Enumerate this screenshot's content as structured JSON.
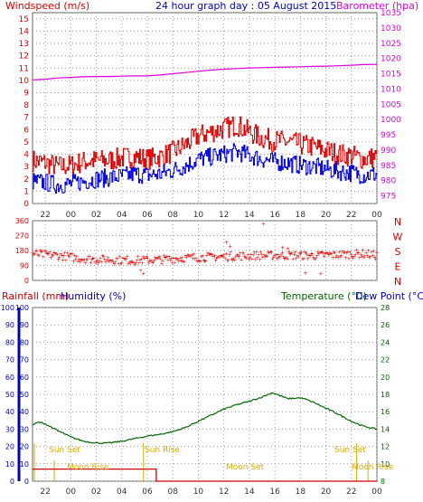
{
  "header": {
    "left_label": "Windspeed (m/s)",
    "title": "24 hour graph day : 05 August 2015",
    "right_label": "Barometer (hpa)"
  },
  "colors": {
    "wind_avg": "#dd0000",
    "wind_gust": "#0000dd",
    "barometer": "#dd00dd",
    "direction": "#dd0000",
    "humidity": "#0000bb",
    "rainfall": "#cc0000",
    "temperature": "#006600",
    "sun": "#ddaa00",
    "moon": "#ddaa00",
    "grid": "#999999"
  },
  "x_ticks": [
    "22",
    "00",
    "02",
    "04",
    "06",
    "08",
    "10",
    "12",
    "14",
    "16",
    "18",
    "20",
    "22",
    "00"
  ],
  "wind_axis": {
    "ticks": [
      "0",
      "1",
      "2",
      "3",
      "4",
      "5",
      "6",
      "7",
      "8",
      "9",
      "10",
      "11",
      "12",
      "13",
      "14",
      "15"
    ]
  },
  "baro_axis": {
    "ticks": [
      "975",
      "980",
      "985",
      "990",
      "995",
      "1000",
      "1005",
      "1010",
      "1015",
      "1020",
      "1025",
      "1030",
      "1035"
    ]
  },
  "dir_axis": {
    "ticks": [
      "360",
      "270",
      "180",
      "90",
      "0"
    ],
    "letters": [
      "N",
      "W",
      "S",
      "E",
      "N"
    ]
  },
  "mid_header": {
    "rainfall": "Rainfall (mm)",
    "humidity": "Humidity (%)",
    "temperature": "Temperature (°C)",
    "dewpoint": "Dew Point (°C)"
  },
  "hum_axis": {
    "ticks": [
      "0",
      "10",
      "20",
      "30",
      "40",
      "50",
      "60",
      "70",
      "80",
      "90",
      "100"
    ]
  },
  "rain_axis": {
    "ticks": [
      "0",
      "10",
      "20",
      "30",
      "40",
      "50",
      "60",
      "70",
      "80",
      "90",
      "100"
    ]
  },
  "temp_axis": {
    "ticks": [
      "8",
      "10",
      "12",
      "14",
      "16",
      "18",
      "20",
      "22",
      "24",
      "26",
      "28"
    ]
  },
  "sun_labels": [
    "Sun Set",
    "Sun Rise",
    "Sun Set"
  ],
  "moon_labels": [
    "Moon Rise",
    "Moon Set",
    "Moon Rise"
  ],
  "chart_data": [
    {
      "type": "line",
      "name": "wind",
      "x_range_hours": [
        -3,
        24
      ],
      "ylim": [
        0,
        15.5
      ],
      "series": [
        {
          "key": "avg",
          "x": [
            -3,
            -2,
            -1,
            0,
            1,
            2,
            3,
            4,
            5,
            6,
            7,
            8,
            9,
            10,
            11,
            12,
            13,
            14,
            15,
            16,
            17,
            18,
            19,
            20,
            21,
            22,
            23,
            24
          ],
          "values": [
            3.5,
            3.3,
            3.0,
            3.1,
            3.4,
            3.5,
            3.5,
            3.7,
            3.8,
            3.6,
            3.8,
            4.2,
            4.8,
            5.5,
            5.8,
            6.1,
            6.4,
            5.8,
            5.3,
            5.1,
            5.0,
            4.8,
            4.6,
            4.3,
            4.0,
            3.9,
            3.6,
            3.8
          ]
        },
        {
          "key": "gust",
          "x": [
            -3,
            -2,
            -1,
            0,
            1,
            2,
            3,
            4,
            5,
            6,
            7,
            8,
            9,
            10,
            11,
            12,
            13,
            14,
            15,
            16,
            17,
            18,
            19,
            20,
            21,
            22,
            23,
            24
          ],
          "values": [
            1.8,
            1.7,
            1.5,
            1.6,
            1.8,
            2.0,
            2.1,
            2.2,
            2.4,
            2.3,
            2.4,
            2.7,
            3.1,
            3.6,
            3.8,
            4.0,
            4.2,
            3.9,
            3.6,
            3.4,
            3.3,
            3.1,
            3.0,
            2.8,
            2.6,
            2.5,
            2.3,
            2.4
          ]
        }
      ]
    },
    {
      "type": "line",
      "name": "barometer",
      "x_range_hours": [
        -3,
        24
      ],
      "ylim": [
        972.5,
        1035
      ],
      "x": [
        -3,
        -2,
        -1,
        0,
        1,
        2,
        3,
        4,
        5,
        6,
        7,
        8,
        9,
        10,
        11,
        12,
        13,
        14,
        15,
        16,
        17,
        18,
        19,
        20,
        21,
        22,
        23,
        24
      ],
      "values": [
        1013.0,
        1013.2,
        1013.6,
        1013.8,
        1014.0,
        1014.1,
        1014.1,
        1014.2,
        1014.3,
        1014.3,
        1014.6,
        1015.0,
        1015.4,
        1015.8,
        1016.2,
        1016.5,
        1016.7,
        1016.9,
        1017.0,
        1017.1,
        1017.2,
        1017.3,
        1017.4,
        1017.5,
        1017.6,
        1017.8,
        1018.0,
        1018.1
      ]
    },
    {
      "type": "scatter",
      "name": "wind_direction",
      "x_range_hours": [
        -3,
        24
      ],
      "ylim": [
        0,
        360
      ],
      "base_x": [
        -3,
        -1,
        1,
        3,
        5,
        7,
        9,
        11,
        13,
        15,
        17,
        19,
        21,
        23,
        24
      ],
      "base_values": [
        160,
        150,
        130,
        125,
        120,
        125,
        135,
        140,
        145,
        150,
        150,
        150,
        155,
        160,
        150
      ],
      "outliers": [
        {
          "x": 5.7,
          "y": 40
        },
        {
          "x": 5.5,
          "y": 60
        },
        {
          "x": 12.2,
          "y": 230
        },
        {
          "x": 12.5,
          "y": 205
        },
        {
          "x": 15.1,
          "y": 340
        },
        {
          "x": 16.6,
          "y": 200
        },
        {
          "x": 17.0,
          "y": 190
        },
        {
          "x": 18.4,
          "y": 45
        },
        {
          "x": 19.6,
          "y": 40
        }
      ]
    },
    {
      "type": "line",
      "name": "temperature",
      "x_range_hours": [
        -3,
        24
      ],
      "ylim": [
        8,
        28
      ],
      "x": [
        -3,
        -2.5,
        -2,
        -1,
        0,
        1,
        2,
        3,
        4,
        5,
        6,
        7,
        8,
        9,
        10,
        11,
        12,
        13,
        14,
        15,
        15.8,
        16.5,
        17,
        18,
        18.5,
        19,
        20,
        21,
        22,
        23,
        24
      ],
      "values": [
        14.5,
        14.8,
        14.6,
        13.8,
        13.1,
        12.6,
        12.4,
        12.4,
        12.6,
        12.9,
        13.2,
        13.4,
        13.7,
        14.2,
        14.9,
        15.6,
        16.3,
        16.8,
        17.2,
        17.7,
        18.2,
        17.8,
        17.5,
        17.6,
        17.4,
        17.1,
        16.4,
        15.7,
        14.9,
        14.3,
        14.0
      ]
    },
    {
      "type": "line",
      "name": "rainfall",
      "x_range_hours": [
        -3,
        24
      ],
      "ylim": [
        0,
        100
      ],
      "x": [
        -3,
        6.7,
        6.7,
        24
      ],
      "values": [
        7,
        7,
        0,
        0
      ]
    }
  ]
}
